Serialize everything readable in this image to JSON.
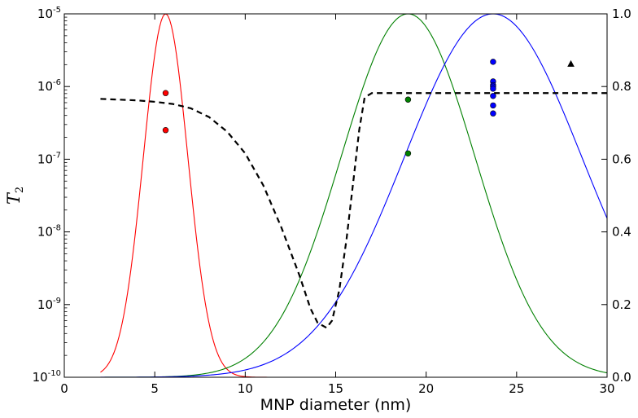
{
  "chart_data": {
    "type": "line",
    "title": "",
    "xlabel": "MNP diameter (nm)",
    "ylabel_main": "T",
    "ylabel_sub": "2",
    "x_range": [
      0,
      30
    ],
    "x_ticks": [
      {
        "value": 0,
        "label": "0"
      },
      {
        "value": 5,
        "label": "5"
      },
      {
        "value": 10,
        "label": "10"
      },
      {
        "value": 15,
        "label": "15"
      },
      {
        "value": 20,
        "label": "20"
      },
      {
        "value": 25,
        "label": "25"
      },
      {
        "value": 30,
        "label": "30"
      }
    ],
    "y_left": {
      "scale": "log",
      "range_exp": [
        -10,
        -5
      ],
      "ticks": [
        {
          "exp": -10,
          "base": "10",
          "sup": "-10"
        },
        {
          "exp": -9,
          "base": "10",
          "sup": "-9"
        },
        {
          "exp": -8,
          "base": "10",
          "sup": "-8"
        },
        {
          "exp": -7,
          "base": "10",
          "sup": "-7"
        },
        {
          "exp": -6,
          "base": "10",
          "sup": "-6"
        },
        {
          "exp": -5,
          "base": "10",
          "sup": "-5"
        }
      ]
    },
    "y_right": {
      "scale": "linear",
      "range": [
        0,
        1
      ],
      "ticks": [
        {
          "value": 0.0,
          "label": "0.0"
        },
        {
          "value": 0.2,
          "label": "0.2"
        },
        {
          "value": 0.4,
          "label": "0.4"
        },
        {
          "value": 0.6,
          "label": "0.6"
        },
        {
          "value": 0.8,
          "label": "0.8"
        },
        {
          "value": 1.0,
          "label": "1.0"
        }
      ]
    },
    "distributions": [
      {
        "name": "red-distribution",
        "color": "#ff0000",
        "axis": "right",
        "shape": "gaussian",
        "mu": 5.6,
        "sigma": 1.23,
        "x_start": 2,
        "x_end": 30
      },
      {
        "name": "green-distribution",
        "color": "#008000",
        "axis": "right",
        "shape": "gaussian",
        "mu": 19.0,
        "sigma": 3.7,
        "x_start": 2,
        "x_end": 30
      },
      {
        "name": "blue-distribution",
        "color": "#0000ff",
        "axis": "right",
        "shape": "gaussian",
        "mu": 23.7,
        "sigma": 4.9,
        "x_start": 2,
        "x_end": 30
      }
    ],
    "dashed_curve": {
      "name": "dashed-t2-curve",
      "color": "#000000",
      "axis": "left",
      "points": [
        [
          2.0,
          -6.17
        ],
        [
          3.0,
          -6.18
        ],
        [
          4.0,
          -6.19
        ],
        [
          5.0,
          -6.21
        ],
        [
          6.0,
          -6.24
        ],
        [
          7.0,
          -6.3
        ],
        [
          8.0,
          -6.42
        ],
        [
          9.0,
          -6.62
        ],
        [
          10.0,
          -6.92
        ],
        [
          11.0,
          -7.36
        ],
        [
          12.0,
          -7.94
        ],
        [
          13.0,
          -8.6
        ],
        [
          13.6,
          -9.05
        ],
        [
          14.0,
          -9.25
        ],
        [
          14.5,
          -9.32
        ],
        [
          14.8,
          -9.22
        ],
        [
          15.2,
          -8.8
        ],
        [
          15.6,
          -8.1
        ],
        [
          16.0,
          -7.25
        ],
        [
          16.3,
          -6.6
        ],
        [
          16.6,
          -6.15
        ],
        [
          17.0,
          -6.09
        ],
        [
          20.0,
          -6.09
        ],
        [
          25.0,
          -6.09
        ],
        [
          30.0,
          -6.09
        ]
      ]
    },
    "scatter": [
      {
        "name": "red-points",
        "color": "#ff0000",
        "marker": "circle",
        "points": [
          [
            5.6,
            -6.09
          ],
          [
            5.6,
            -6.6
          ]
        ]
      },
      {
        "name": "green-points",
        "color": "#008000",
        "marker": "circle",
        "points": [
          [
            19.0,
            -6.18
          ],
          [
            19.0,
            -6.92
          ]
        ]
      },
      {
        "name": "blue-points",
        "color": "#0000ff",
        "marker": "circle",
        "points": [
          [
            23.7,
            -5.66
          ],
          [
            23.7,
            -5.93
          ],
          [
            23.7,
            -5.98
          ],
          [
            23.7,
            -6.0
          ],
          [
            23.7,
            -6.03
          ],
          [
            23.7,
            -6.13
          ],
          [
            23.7,
            -6.26
          ],
          [
            23.7,
            -6.37
          ]
        ]
      },
      {
        "name": "black-point",
        "color": "#000000",
        "marker": "triangle",
        "points": [
          [
            28.0,
            -5.69
          ]
        ]
      }
    ]
  }
}
